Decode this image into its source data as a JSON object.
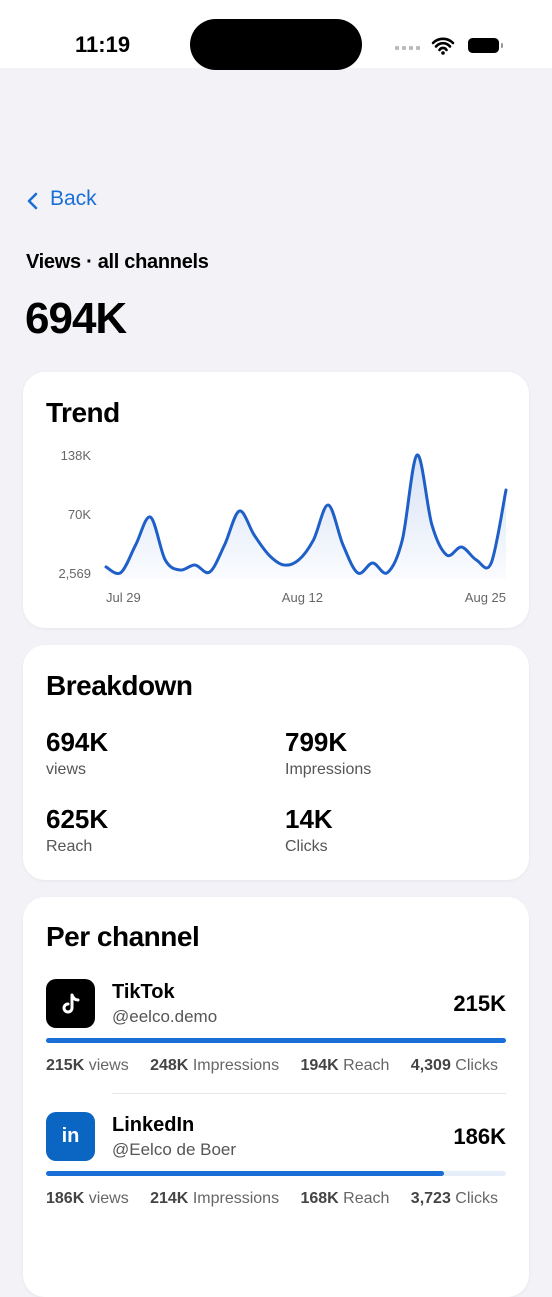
{
  "status_bar": {
    "time": "11:19"
  },
  "nav": {
    "back": "Back"
  },
  "header": {
    "subtitle": "Views · all channels",
    "total": "694K"
  },
  "trend": {
    "title": "Trend",
    "chart_data": {
      "type": "line",
      "categories": [
        "Jul 29",
        null,
        null,
        null,
        null,
        null,
        null,
        null,
        null,
        null,
        null,
        null,
        null,
        null,
        "Aug 12",
        null,
        null,
        null,
        null,
        null,
        null,
        null,
        null,
        null,
        null,
        null,
        null,
        "Aug 25"
      ],
      "values": [
        9500,
        3000,
        34700,
        66800,
        17500,
        6000,
        11800,
        3700,
        34700,
        73700,
        46200,
        23200,
        11800,
        17500,
        40400,
        80600,
        34700,
        2569,
        14000,
        3000,
        40400,
        138000,
        57700,
        23200,
        32400,
        17500,
        14000,
        97800
      ],
      "color": "#1f5fc8",
      "ylim": [
        2569,
        138000
      ],
      "yticks": [
        {
          "value": 2569,
          "label": "2,569"
        },
        {
          "value": 70284.5,
          "label": "70K"
        },
        {
          "value": 138000,
          "label": "138K"
        }
      ]
    }
  },
  "breakdown": {
    "title": "Breakdown",
    "items": [
      {
        "value": "694K",
        "label": "views"
      },
      {
        "value": "799K",
        "label": "Impressions"
      },
      {
        "value": "625K",
        "label": "Reach"
      },
      {
        "value": "14K",
        "label": "Clicks"
      }
    ]
  },
  "per_channel": {
    "title": "Per channel",
    "bar_color": "#1a6fd6",
    "channels": [
      {
        "name": "TikTok",
        "handle": "@eelco.demo",
        "total": {
          "value": 215000,
          "label": "215K"
        },
        "stats": [
          {
            "value": "215K",
            "label": "views"
          },
          {
            "value": "248K",
            "label": "Impressions"
          },
          {
            "value": "194K",
            "label": "Reach"
          },
          {
            "value": "4,309",
            "label": "Clicks"
          }
        ]
      },
      {
        "name": "LinkedIn",
        "handle": "@Eelco de Boer",
        "icon_text": "in",
        "total": {
          "value": 186000,
          "label": "186K"
        },
        "stats": [
          {
            "value": "186K",
            "label": "views"
          },
          {
            "value": "214K",
            "label": "Impressions"
          },
          {
            "value": "168K",
            "label": "Reach"
          },
          {
            "value": "3,723",
            "label": "Clicks"
          }
        ]
      }
    ]
  }
}
